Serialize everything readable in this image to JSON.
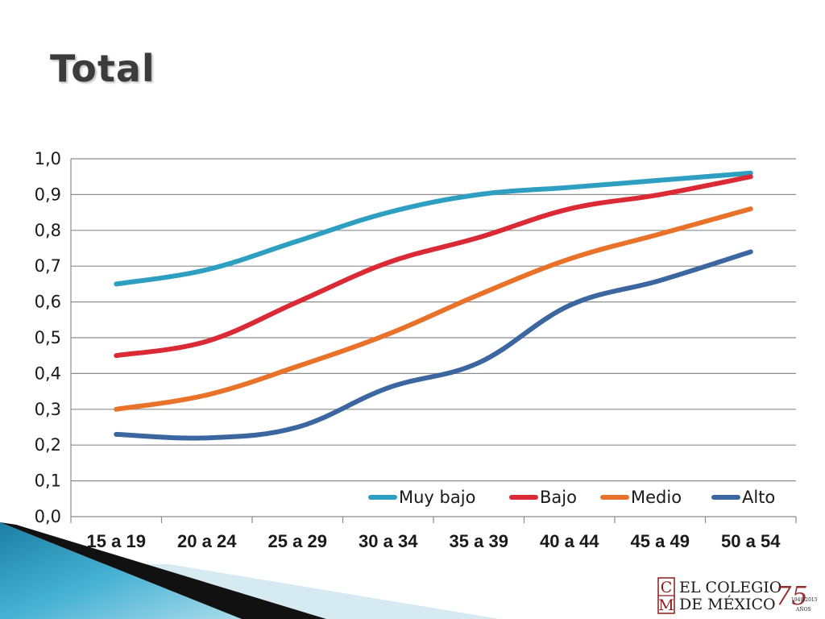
{
  "slide": {
    "title": "Total"
  },
  "chart_data": {
    "type": "line",
    "title": "",
    "xlabel": "",
    "ylabel": "",
    "categories": [
      "15 a 19",
      "20 a 24",
      "25 a 29",
      "30 a 34",
      "35 a 39",
      "40 a 44",
      "45 a 49",
      "50 a 54"
    ],
    "ylim": [
      0,
      1
    ],
    "yticks": [
      "0,0",
      "0,1",
      "0,2",
      "0,3",
      "0,4",
      "0,5",
      "0,6",
      "0,7",
      "0,8",
      "0,9",
      "1,0"
    ],
    "grid": true,
    "legend_position": "bottom-right",
    "series": [
      {
        "name": "Muy bajo",
        "color": "#2e9fc0",
        "values": [
          0.65,
          0.69,
          0.77,
          0.85,
          0.9,
          0.92,
          0.94,
          0.96
        ]
      },
      {
        "name": "Bajo",
        "color": "#d92a35",
        "values": [
          0.45,
          0.49,
          0.6,
          0.71,
          0.78,
          0.86,
          0.9,
          0.95
        ]
      },
      {
        "name": "Medio",
        "color": "#e9722b",
        "values": [
          0.3,
          0.34,
          0.42,
          0.51,
          0.62,
          0.72,
          0.79,
          0.86
        ]
      },
      {
        "name": "Alto",
        "color": "#3b66a0",
        "values": [
          0.23,
          0.22,
          0.25,
          0.36,
          0.43,
          0.59,
          0.66,
          0.74
        ]
      }
    ]
  },
  "logo": {
    "monogram_top": "C",
    "monogram_bottom": "M",
    "line1": "EL COLEGIO",
    "line2": "DE MÉXICO",
    "anniversary_number": "75",
    "anniversary_years": "1940-2015",
    "anniversary_word": "AÑOS"
  }
}
